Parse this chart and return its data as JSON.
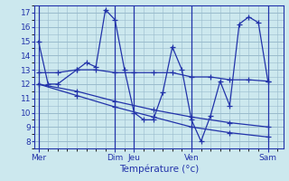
{
  "xlabel": "Température (°c)",
  "bg_color": "#cce8ee",
  "line_color": "#2233aa",
  "grid_color": "#99bbcc",
  "ylim": [
    7.5,
    17.5
  ],
  "yticks": [
    8,
    9,
    10,
    11,
    12,
    13,
    14,
    15,
    16,
    17
  ],
  "day_labels": [
    "Mer",
    "Dim",
    "Jeu",
    "Ven",
    "Sam"
  ],
  "day_x": [
    0,
    4,
    5,
    8,
    12
  ],
  "xlim": [
    -0.2,
    12.8
  ],
  "series1_x": [
    0,
    0.5,
    1.0,
    2.0,
    2.5,
    3.0,
    3.5,
    4.0,
    4.5,
    5.0,
    5.5,
    6.0,
    6.5,
    7.0,
    7.5,
    8.0,
    8.5,
    9.0,
    9.5,
    10.0,
    10.5,
    11.0,
    11.5,
    12.0
  ],
  "series1_y": [
    15,
    12,
    12,
    13,
    13.5,
    13.2,
    17.2,
    16.5,
    13.0,
    10.0,
    9.5,
    9.5,
    11.4,
    14.6,
    13.0,
    9.5,
    8.0,
    9.8,
    12.2,
    10.5,
    16.2,
    16.7,
    16.3,
    12.2
  ],
  "series2_x": [
    0,
    1,
    2,
    3,
    4,
    5,
    6,
    7,
    8,
    9,
    10,
    11,
    12
  ],
  "series2_y": [
    12.8,
    12.8,
    13.0,
    13.0,
    12.8,
    12.8,
    12.8,
    12.8,
    12.5,
    12.5,
    12.3,
    12.3,
    12.2
  ],
  "series3_x": [
    0,
    2,
    4,
    6,
    8,
    10,
    12
  ],
  "series3_y": [
    12.0,
    11.5,
    10.8,
    10.2,
    9.7,
    9.3,
    9.0
  ],
  "series4_x": [
    0,
    2,
    4,
    6,
    8,
    10,
    12
  ],
  "series4_y": [
    12.0,
    11.2,
    10.4,
    9.7,
    9.0,
    8.6,
    8.3
  ]
}
